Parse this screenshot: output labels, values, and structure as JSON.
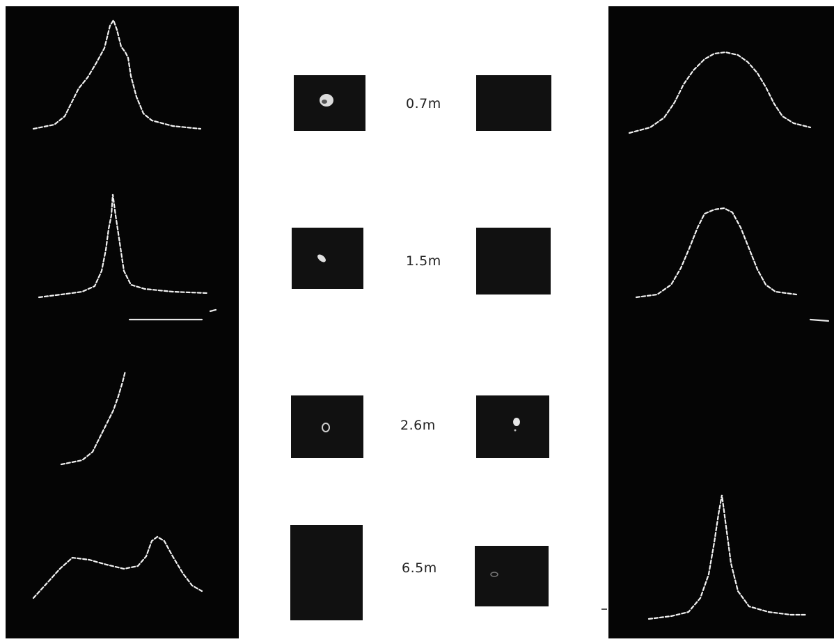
{
  "figure": {
    "distances": [
      "0.7m",
      "1.5m",
      "2.6m",
      "6.5m"
    ],
    "colors": {
      "background": "#ffffff",
      "panel": "#050505",
      "trace": "#f2f2f2",
      "label": "#222222"
    }
  }
}
